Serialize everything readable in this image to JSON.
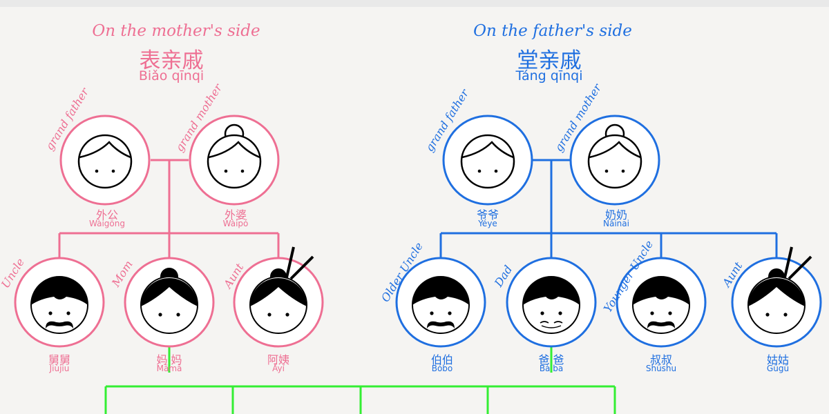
{
  "colors": {
    "pink": "#ee6f93",
    "blue": "#1f6fe0",
    "green": "#33ee33",
    "background": "#f5f4f2"
  },
  "mother_side": {
    "heading": "On the mother's side",
    "chinese": "表亲戚",
    "pinyin": "Biǎo qīnqi",
    "grandfather": {
      "role": "grand father",
      "chinese": "外公",
      "pinyin": "Wàigōng",
      "icon": "grandfather-face-icon"
    },
    "grandmother": {
      "role": "grand mother",
      "chinese": "外婆",
      "pinyin": "Wàipó",
      "icon": "grandmother-face-icon"
    },
    "uncle": {
      "role": "Uncle",
      "chinese": "舅舅",
      "pinyin": "Jiùjiu",
      "icon": "mustache-man-face-icon"
    },
    "mom": {
      "role": "Mom",
      "chinese": "妈 妈",
      "pinyin": "Māmā",
      "icon": "bun-woman-face-icon"
    },
    "aunt": {
      "role": "Aunt",
      "chinese": "阿姨",
      "pinyin": "Āyí",
      "icon": "hairpin-woman-face-icon"
    }
  },
  "father_side": {
    "heading": "On the father's side",
    "chinese": "堂亲戚",
    "pinyin": "Táng qīnqi",
    "grandfather": {
      "role": "grand father",
      "chinese": "爷爷",
      "pinyin": "Yéye",
      "icon": "grandfather-face-icon"
    },
    "grandmother": {
      "role": "grand mother",
      "chinese": "奶奶",
      "pinyin": "Nǎinai",
      "icon": "grandmother-face-icon"
    },
    "older_uncle": {
      "role": "Older Uncle",
      "chinese": "伯伯",
      "pinyin": "Bóbo",
      "icon": "mustache-man-face-icon"
    },
    "dad": {
      "role": "Dad",
      "chinese": "爸 爸",
      "pinyin": "Bà ba",
      "icon": "smiling-man-face-icon"
    },
    "younger_uncle": {
      "role": "Younger Uncle",
      "chinese": "叔叔",
      "pinyin": "Shūshu",
      "icon": "mustache-man-face-icon"
    },
    "aunt": {
      "role": "Aunt",
      "chinese": "姑姑",
      "pinyin": "Gūgū",
      "icon": "hairpin-woman-face-icon"
    }
  }
}
